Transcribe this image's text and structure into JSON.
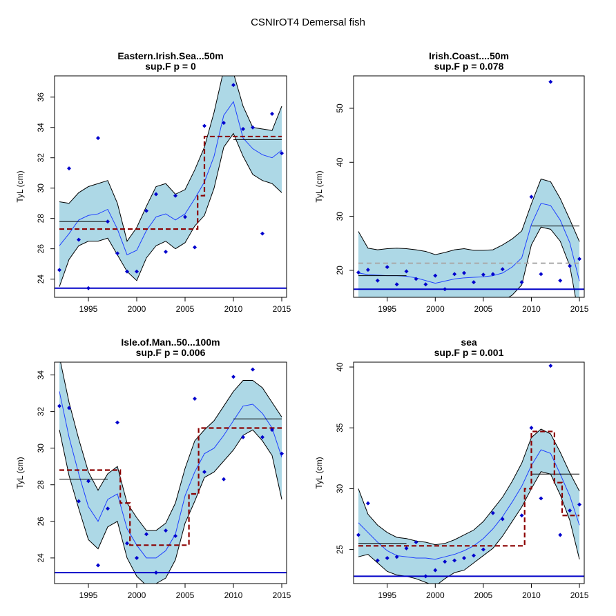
{
  "figure_title": "CSNIrOT4 Demersal fish",
  "colors": {
    "band_fill": "#add8e6",
    "band_edge": "#000000",
    "trend": "#1f3fff",
    "points": "#0000cd",
    "reference": "#0000c8",
    "step": "#8b0000",
    "mean": "#000000",
    "mean_dashed": "#a9a9a9"
  },
  "chart_data": [
    {
      "type": "scatter",
      "title": "Eastern.Irish.Sea...50m",
      "subtitle": "sup.F p = 0",
      "ylabel": "TyL (cm)",
      "xlim": [
        1991.5,
        2015.5
      ],
      "ylim": [
        22.8,
        37.4
      ],
      "xticks": [
        "1995",
        "2000",
        "2005",
        "2010",
        "2015"
      ],
      "yticks": [
        "24",
        "26",
        "28",
        "30",
        "32",
        "34",
        "36"
      ],
      "x": [
        1992,
        1993,
        1994,
        1995,
        1996,
        1997,
        1998,
        1999,
        2000,
        2001,
        2002,
        2003,
        2004,
        2005,
        2006,
        2007,
        2008,
        2009,
        2010,
        2011,
        2012,
        2013,
        2014,
        2015
      ],
      "points": [
        24.6,
        31.3,
        26.6,
        23.4,
        33.3,
        27.8,
        25.7,
        24.5,
        24.5,
        28.5,
        29.6,
        25.8,
        29.5,
        28.1,
        26.1,
        34.1,
        null,
        34.3,
        36.8,
        33.9,
        34.0,
        27.0,
        34.9,
        32.3
      ],
      "trend": [
        26.2,
        27.0,
        27.9,
        28.2,
        28.3,
        28.6,
        27.3,
        25.6,
        25.9,
        27.2,
        28.1,
        28.3,
        27.9,
        28.3,
        29.3,
        30.4,
        32.1,
        34.8,
        35.7,
        33.3,
        32.6,
        32.2,
        32.0,
        32.5
      ],
      "upper": [
        29.1,
        29.0,
        29.7,
        30.1,
        30.3,
        30.5,
        29.0,
        26.5,
        27.4,
        28.8,
        30.1,
        30.3,
        29.6,
        29.9,
        31.2,
        32.7,
        35.0,
        37.8,
        37.6,
        35.4,
        34.0,
        33.9,
        33.8,
        35.4
      ],
      "lower": [
        23.5,
        25.3,
        26.2,
        26.5,
        26.5,
        26.7,
        25.6,
        24.5,
        23.9,
        25.4,
        26.2,
        26.5,
        26.0,
        26.4,
        27.5,
        28.2,
        30.0,
        32.7,
        33.6,
        32.1,
        30.9,
        30.5,
        30.3,
        29.7
      ],
      "step_segments": [
        [
          1992,
          2006.3,
          27.3
        ],
        [
          2006.3,
          2007,
          29.5
        ],
        [
          2007,
          2015,
          33.4
        ]
      ],
      "mean_segments": [
        [
          1992,
          1997,
          27.8
        ],
        [
          2010,
          2015,
          33.2
        ]
      ],
      "dashed_mean": null,
      "reference": 23.4
    },
    {
      "type": "scatter",
      "title": "Irish.Coast....50m",
      "subtitle": "sup.F p = 0.078",
      "ylabel": "TyL (cm)",
      "xlim": [
        1991.5,
        2015.5
      ],
      "ylim": [
        15.0,
        56.0
      ],
      "xticks": [
        "1995",
        "2000",
        "2005",
        "2010",
        "2015"
      ],
      "yticks": [
        "20",
        "30",
        "40",
        "50"
      ],
      "x": [
        1992,
        1993,
        1994,
        1995,
        1996,
        1997,
        1998,
        1999,
        2000,
        2001,
        2002,
        2003,
        2004,
        2005,
        2006,
        2007,
        2008,
        2009,
        2010,
        2011,
        2012,
        2013,
        2014,
        2015
      ],
      "points": [
        19.6,
        20.1,
        18.1,
        20.6,
        17.4,
        19.8,
        18.4,
        17.4,
        19.0,
        16.5,
        19.3,
        19.5,
        17.8,
        19.2,
        19.3,
        20.2,
        null,
        17.8,
        33.6,
        19.3,
        54.9,
        18.1,
        20.8,
        22.1
      ],
      "trend": [
        19.5,
        19.2,
        19.1,
        19.0,
        19.0,
        18.9,
        18.6,
        18.1,
        17.6,
        18.0,
        18.4,
        18.6,
        18.7,
        18.8,
        19.0,
        19.5,
        20.6,
        22.3,
        28.5,
        32.4,
        32.0,
        29.3,
        25.1,
        18.0
      ],
      "upper": [
        27.2,
        24.1,
        23.8,
        24.0,
        24.1,
        24.0,
        23.8,
        23.5,
        22.9,
        23.3,
        23.8,
        24.0,
        23.7,
        23.7,
        23.8,
        24.7,
        25.8,
        27.3,
        32.3,
        36.9,
        36.4,
        33.3,
        29.4,
        25.3
      ],
      "lower": [
        12.0,
        14.3,
        14.4,
        14.1,
        13.9,
        13.8,
        13.4,
        12.7,
        12.3,
        12.7,
        13.0,
        13.2,
        13.7,
        13.9,
        14.2,
        14.3,
        15.4,
        17.3,
        24.7,
        28.0,
        27.6,
        25.4,
        20.8,
        11.0
      ],
      "step_segments": null,
      "mean_segments": [
        [
          1992,
          1997,
          19.0
        ],
        [
          2010,
          2015,
          28.2
        ]
      ],
      "dashed_mean": 21.3,
      "reference": 16.5
    },
    {
      "type": "scatter",
      "title": "Isle.of.Man..50...100m",
      "subtitle": "sup.F p = 0.006",
      "ylabel": "TyL (cm)",
      "xlim": [
        1991.5,
        2015.5
      ],
      "ylim": [
        22.6,
        34.7
      ],
      "xticks": [
        "1995",
        "2000",
        "2005",
        "2010",
        "2015"
      ],
      "yticks": [
        "24",
        "26",
        "28",
        "30",
        "32",
        "34"
      ],
      "x": [
        1992,
        1993,
        1994,
        1995,
        1996,
        1997,
        1998,
        1999,
        2000,
        2001,
        2002,
        2003,
        2004,
        2005,
        2006,
        2007,
        2008,
        2009,
        2010,
        2011,
        2012,
        2013,
        2014,
        2015
      ],
      "points": [
        32.3,
        32.2,
        27.1,
        28.2,
        23.6,
        26.7,
        31.4,
        24.8,
        24.0,
        25.3,
        23.2,
        25.5,
        25.2,
        null,
        32.7,
        28.7,
        null,
        28.3,
        33.9,
        30.6,
        34.3,
        30.6,
        31.0,
        29.7
      ],
      "trend": [
        33.1,
        30.6,
        28.6,
        26.8,
        26.0,
        27.2,
        27.5,
        25.6,
        24.7,
        24.0,
        24.0,
        24.4,
        25.3,
        27.4,
        28.7,
        29.7,
        30.0,
        30.7,
        31.5,
        32.3,
        32.4,
        31.9,
        31.1,
        29.5
      ],
      "upper": [
        35.0,
        32.5,
        30.5,
        28.7,
        27.7,
        28.6,
        29.0,
        27.0,
        26.2,
        25.5,
        25.5,
        25.9,
        27.0,
        28.9,
        30.4,
        31.0,
        31.5,
        32.3,
        33.1,
        33.7,
        33.7,
        33.3,
        32.5,
        31.7
      ],
      "lower": [
        31.0,
        28.5,
        26.7,
        25.0,
        24.5,
        25.7,
        26.0,
        24.0,
        23.0,
        22.5,
        22.6,
        22.9,
        23.9,
        25.9,
        27.1,
        28.4,
        28.7,
        29.3,
        29.9,
        30.7,
        31.0,
        30.4,
        29.6,
        27.2
      ],
      "step_segments": [
        [
          1992,
          1998.3,
          28.8
        ],
        [
          1998.3,
          1999.3,
          27.0
        ],
        [
          1999.3,
          2005.4,
          24.7
        ],
        [
          2005.4,
          2006.4,
          27.5
        ],
        [
          2006.4,
          2015,
          31.1
        ]
      ],
      "mean_segments": [
        [
          1992,
          1997,
          28.3
        ],
        [
          2010,
          2015,
          31.6
        ]
      ],
      "dashed_mean": null,
      "reference": 23.2
    },
    {
      "type": "scatter",
      "title": "sea",
      "subtitle": "sup.F p = 0.001",
      "ylabel": "TyL (cm)",
      "xlim": [
        1991.5,
        2015.5
      ],
      "ylim": [
        22.2,
        40.4
      ],
      "xticks": [
        "1995",
        "2000",
        "2005",
        "2010",
        "2015"
      ],
      "yticks": [
        "25",
        "30",
        "35",
        "40"
      ],
      "x": [
        1992,
        1993,
        1994,
        1995,
        1996,
        1997,
        1998,
        1999,
        2000,
        2001,
        2002,
        2003,
        2004,
        2005,
        2006,
        2007,
        2008,
        2009,
        2010,
        2011,
        2012,
        2013,
        2014,
        2015
      ],
      "points": [
        26.2,
        28.8,
        24.1,
        24.3,
        24.4,
        25.1,
        25.6,
        22.8,
        23.3,
        24.0,
        24.1,
        24.3,
        24.5,
        25.0,
        28.0,
        27.5,
        null,
        27.8,
        35.0,
        29.2,
        40.1,
        26.2,
        28.2,
        28.7
      ],
      "trend": [
        27.2,
        26.4,
        25.6,
        24.9,
        24.5,
        24.4,
        24.3,
        24.3,
        24.2,
        24.4,
        24.6,
        24.9,
        25.3,
        25.9,
        26.7,
        27.7,
        28.9,
        30.2,
        31.9,
        33.2,
        32.9,
        31.2,
        29.4,
        27.0
      ],
      "upper": [
        30.0,
        27.9,
        27.0,
        26.4,
        26.0,
        25.9,
        25.7,
        25.6,
        25.4,
        25.5,
        25.8,
        26.2,
        26.6,
        27.3,
        28.3,
        29.3,
        30.6,
        32.1,
        34.2,
        34.9,
        34.5,
        33.0,
        31.3,
        29.8
      ],
      "lower": [
        24.4,
        24.6,
        23.9,
        23.2,
        22.9,
        22.8,
        22.6,
        22.3,
        22.0,
        22.6,
        23.1,
        23.3,
        23.9,
        24.5,
        25.1,
        26.1,
        27.3,
        28.5,
        30.0,
        31.4,
        31.2,
        29.5,
        27.4,
        24.2
      ],
      "step_segments": [
        [
          1992,
          2009.3,
          25.3
        ],
        [
          2009.3,
          2010,
          30.0
        ],
        [
          2010,
          2012.4,
          34.7
        ],
        [
          2012.4,
          2013.2,
          30.5
        ],
        [
          2013.2,
          2015,
          27.8
        ]
      ],
      "mean_segments": [
        [
          1992,
          1997,
          25.5
        ],
        [
          2010,
          2015,
          31.2
        ]
      ],
      "dashed_mean": null,
      "reference": 22.8
    }
  ]
}
